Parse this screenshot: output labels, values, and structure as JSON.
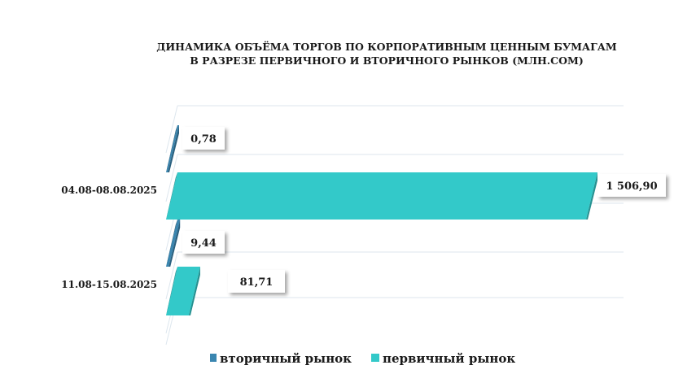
{
  "chart_data": {
    "type": "bar",
    "orientation": "horizontal",
    "title": "ДИНАМИКА ОБЪЁМА ТОРГОВ ПО КОРПОРАТИВНЫМ ЦЕННЫМ БУМАГАМ",
    "subtitle": "В РАЗРЕЗЕ ПЕРВИЧНОГО И ВТОРИЧНОГО РЫНКОВ  (МЛН.СОМ)",
    "categories": [
      "04.08-08.08.2025",
      "11.08-15.08.2025"
    ],
    "series": [
      {
        "name": "вторичный рынок",
        "values": [
          0.78,
          9.44
        ],
        "labels": [
          "0,78",
          "9,44"
        ],
        "color": "#3a86b0"
      },
      {
        "name": "первичный рынок",
        "values": [
          1506.9,
          81.71
        ],
        "labels": [
          "1 506,90",
          "81,71"
        ],
        "color": "#33c9c9"
      }
    ],
    "xlim": [
      0,
      1506.9
    ],
    "legend_position": "bottom",
    "grid": true,
    "style": "3d"
  }
}
